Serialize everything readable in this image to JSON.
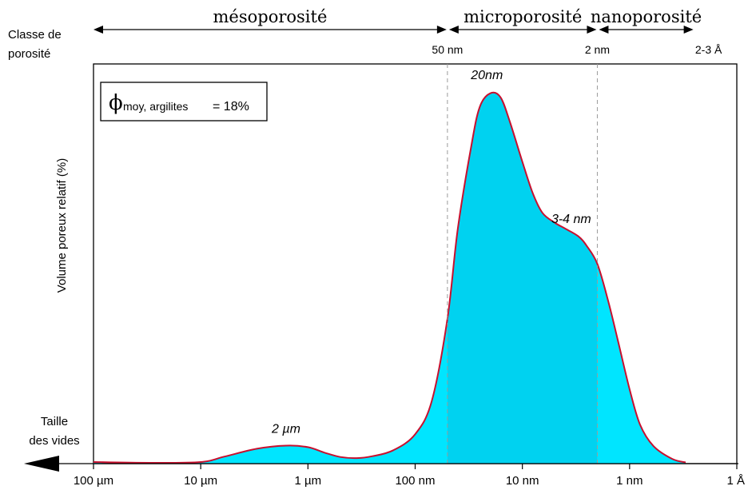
{
  "chart_data": {
    "type": "area",
    "xlabel": "Taille des vides",
    "ylabel": "Volume poreux relatif (%)",
    "x_scale": "log",
    "x_direction": "decreasing",
    "x_unit": "m",
    "xlim": [
      0.0001,
      1e-10
    ],
    "ylim": [
      0,
      100
    ],
    "xticks": [
      {
        "value": 0.0001,
        "label": "100 µm"
      },
      {
        "value": 1e-05,
        "label": "10 µm"
      },
      {
        "value": 1e-06,
        "label": "1 µm"
      },
      {
        "value": 1e-07,
        "label": "100 nm"
      },
      {
        "value": 1e-08,
        "label": "10 nm"
      },
      {
        "value": 1e-09,
        "label": "1 nm"
      },
      {
        "value": 1e-10,
        "label": "1 Å"
      }
    ],
    "series": [
      {
        "x": [
          0.0001,
          3e-05,
          1e-05,
          6e-06,
          3e-06,
          1.6e-06,
          1e-06,
          7e-07,
          5e-07,
          3.5e-07,
          2.5e-07,
          1.6e-07,
          1e-07,
          7e-08,
          5e-08,
          4e-08,
          3e-08,
          2.5e-08,
          2e-08,
          1.6e-08,
          1.3e-08,
          1e-08,
          8e-09,
          6.5e-09,
          5e-09,
          4e-09,
          3e-09,
          2.5e-09,
          2e-09,
          1.6e-09,
          1.3e-09,
          1e-09,
          8e-10,
          6e-10,
          4e-10,
          3e-10
        ],
        "y": [
          0.4,
          0.2,
          0.4,
          1.8,
          3.8,
          4.6,
          4.2,
          2.8,
          1.7,
          1.4,
          1.9,
          3.4,
          7.5,
          16,
          37,
          60,
          81,
          91,
          94.5,
          93.5,
          87,
          77,
          69,
          64,
          61.5,
          60,
          58,
          55.5,
          51,
          42,
          32,
          19,
          10,
          4.5,
          1.2,
          0.3
        ]
      }
    ],
    "annotations": [
      {
        "text": "2 µm",
        "x": 1.6e-06,
        "y": 4.6
      },
      {
        "text": "20nm",
        "x": 2e-08,
        "y": 94.5
      },
      {
        "text": "3-4 nm",
        "x": 3.5e-09,
        "y": 59
      }
    ],
    "porosity_classes": {
      "row_label_line1": "Classe de",
      "row_label_line2": "porosité",
      "classes": [
        {
          "name": "mésoporosité",
          "from": 0.0001,
          "to": 5e-08
        },
        {
          "name": "microporosité",
          "from": 5e-08,
          "to": 2e-09
        },
        {
          "name": "nanoporosité",
          "from": 2e-09,
          "to": 2.5e-10
        }
      ],
      "boundaries": [
        {
          "value": 5e-08,
          "label": "50 nm"
        },
        {
          "value": 2e-09,
          "label": "2 nm"
        },
        {
          "value": 2.5e-10,
          "label": "2-3 Å"
        }
      ]
    },
    "legend_box": {
      "symbol": "ϕ",
      "subscript": "moy, argilites",
      "value_text": "= 18%",
      "placement": "top-left"
    },
    "colors": {
      "fill": "#00e5ff",
      "fill_micro": "#00d2f0",
      "curve": "#c8102e",
      "divider": "#9a9a9a",
      "axis": "#000000"
    }
  }
}
